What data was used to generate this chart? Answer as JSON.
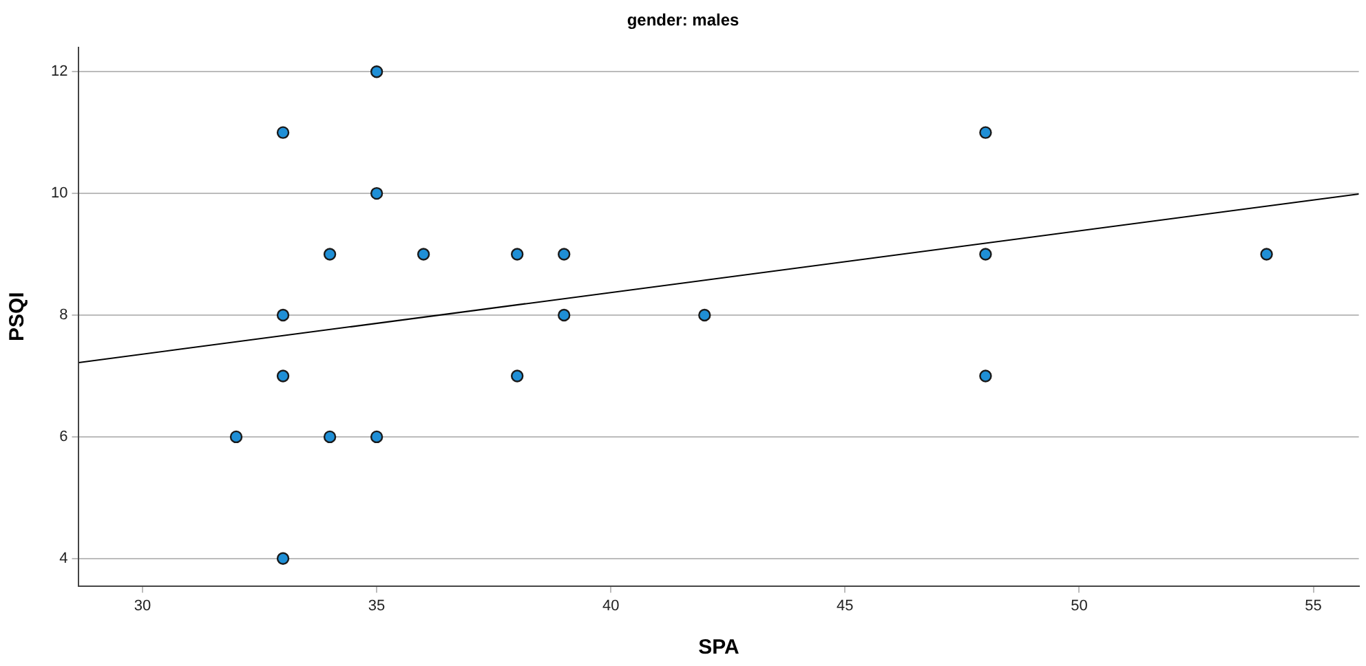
{
  "chart_data": {
    "type": "scatter",
    "title": "gender: males",
    "xlabel": "SPA",
    "ylabel": "PSQI",
    "xlim": [
      28.64,
      55.97
    ],
    "ylim": [
      3.55,
      12.4
    ],
    "xticks": [
      30,
      35,
      40,
      45,
      50,
      55
    ],
    "yticks": [
      4,
      6,
      8,
      10,
      12
    ],
    "grid": "y",
    "series": [
      {
        "type": "scatter",
        "marker": "circle",
        "color": "#1f8fd6",
        "x": [
          32,
          33,
          33,
          33,
          33,
          34,
          34,
          35,
          35,
          35,
          36,
          38,
          38,
          39,
          39,
          42,
          48,
          48,
          48,
          54
        ],
        "values": [
          6,
          11,
          8,
          7,
          4,
          9,
          6,
          12,
          10,
          6,
          9,
          9,
          7,
          9,
          8,
          8,
          11,
          9,
          7,
          9
        ]
      },
      {
        "type": "line",
        "marker": "none",
        "color": "#000000",
        "line_style": "solid",
        "x": [
          28.64,
          55.97
        ],
        "values": [
          7.22,
          9.99
        ]
      }
    ]
  }
}
